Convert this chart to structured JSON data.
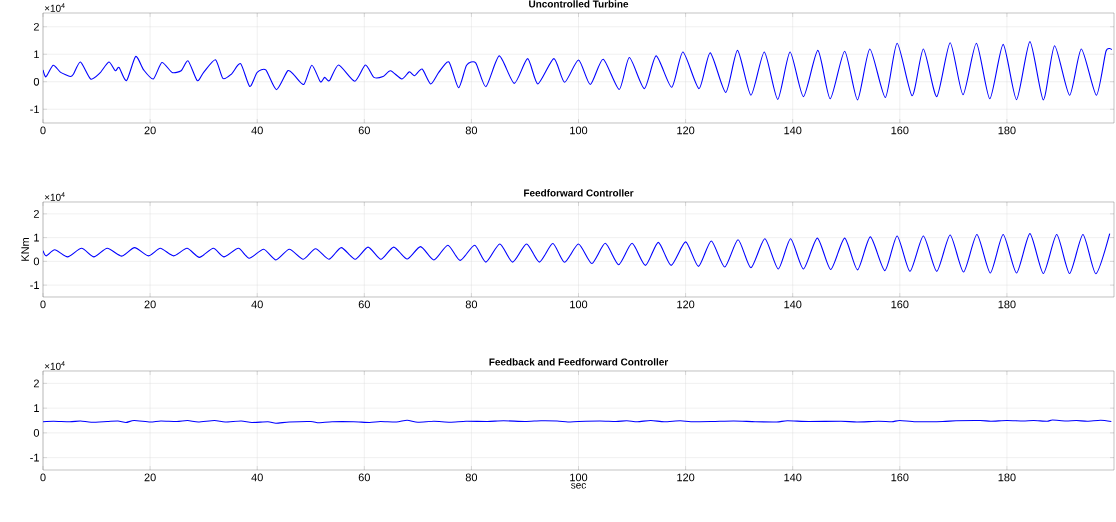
{
  "chart_data": [
    {
      "type": "line",
      "title": "Uncontrolled Turbine",
      "annotations": [
        "×10$^{4}$"
      ],
      "color": "#0000ff",
      "grid": true,
      "x": [
        0,
        0.55,
        1.9,
        3.3,
        5.1,
        5.7,
        7.0,
        8.9,
        10.6,
        12.3,
        13.5,
        14.2,
        15.6,
        17.3,
        18.8,
        20.6,
        22.2,
        24.1,
        25.8,
        27.1,
        28.8,
        30.0,
        32.2,
        33.6,
        35.2,
        36.9,
        38.6,
        40.0,
        41.6,
        43.6,
        45.7,
        46.9,
        48.7,
        50.2,
        51.8,
        52.6,
        53.5,
        55.2,
        58.2,
        60.2,
        61.8,
        63.5,
        64.9,
        67.0,
        68.4,
        69.4,
        70.8,
        72.4,
        73.9,
        75.8,
        77.6,
        79.1,
        80.8,
        82.7,
        85.2,
        88.0,
        90.5,
        92.4,
        95.4,
        97.4,
        100,
        102.2,
        104.6,
        107.6,
        109.5,
        112.3,
        114.5,
        117.4,
        119.5,
        122.5,
        124.6,
        127.5,
        129.7,
        132.2,
        134.7,
        137.2,
        139.5,
        142,
        144.7,
        147,
        149.7,
        152.1,
        154.4,
        157.3,
        159.5,
        162.3,
        164.4,
        166.9,
        169.4,
        171.8,
        174.3,
        176.8,
        179.3,
        181.8,
        184.3,
        186.8,
        188.9,
        191.7,
        193.9,
        196.7,
        198.5,
        199.6
      ],
      "values": [
        0.43,
        0.18,
        0.6,
        0.34,
        0.19,
        0.28,
        0.72,
        0.1,
        0.31,
        0.72,
        0.4,
        0.52,
        0.04,
        0.92,
        0.43,
        0.1,
        0.7,
        0.34,
        0.4,
        0.76,
        0.04,
        0.34,
        0.8,
        0.12,
        0.28,
        0.66,
        -0.17,
        0.34,
        0.43,
        -0.29,
        0.4,
        0.24,
        -0.1,
        0.6,
        0.0,
        0.16,
        0.04,
        0.61,
        0.02,
        0.61,
        0.16,
        0.19,
        0.4,
        0.1,
        0.36,
        0.22,
        0.46,
        -0.08,
        0.34,
        0.72,
        -0.22,
        0.6,
        0.69,
        -0.18,
        0.94,
        -0.06,
        0.84,
        -0.08,
        0.84,
        -0.02,
        0.79,
        -0.1,
        0.82,
        -0.28,
        0.88,
        -0.25,
        0.94,
        -0.2,
        1.08,
        -0.25,
        1.05,
        -0.39,
        1.14,
        -0.49,
        1.08,
        -0.64,
        1.08,
        -0.54,
        1.14,
        -0.62,
        1.11,
        -0.66,
        1.19,
        -0.57,
        1.4,
        -0.51,
        1.19,
        -0.54,
        1.42,
        -0.47,
        1.4,
        -0.62,
        1.36,
        -0.65,
        1.46,
        -0.66,
        1.31,
        -0.49,
        1.19,
        -0.49,
        1.11,
        1.17
      ],
      "xlim": [
        0,
        200
      ],
      "ylim": [
        -1.5,
        2.5
      ],
      "xticks": [
        0,
        20,
        40,
        60,
        80,
        100,
        120,
        140,
        160,
        180
      ],
      "yticks": [
        -1,
        0,
        1,
        2
      ]
    },
    {
      "type": "line",
      "title": "Feedforward Controller",
      "ylabel": "KNm",
      "annotations": [
        "×10$^{4}$"
      ],
      "color": "#0000ff",
      "grid": true,
      "x": [
        0,
        0.6,
        2.2,
        4.6,
        7.2,
        9.5,
        12.0,
        14.7,
        17.1,
        19.7,
        21.9,
        24.4,
        26.9,
        29.2,
        31.8,
        33.8,
        36.5,
        38.5,
        41.2,
        43.5,
        46.0,
        48.6,
        50.9,
        53.4,
        55.7,
        58.3,
        60.7,
        63.1,
        65.5,
        68.0,
        70.5,
        73.0,
        75.6,
        77.9,
        80.6,
        82.7,
        85.3,
        87.7,
        90.3,
        92.7,
        95.2,
        97.4,
        100,
        102.5,
        105,
        107.5,
        110,
        112.5,
        114.9,
        117.3,
        120,
        122.4,
        124.8,
        127.3,
        129.8,
        132.2,
        134.8,
        137.3,
        139.6,
        142,
        144.6,
        147.1,
        149.7,
        152.1,
        154.5,
        157.2,
        159.5,
        161.9,
        164.4,
        166.9,
        169.4,
        171.9,
        174.4,
        176.9,
        179.3,
        181.8,
        184.3,
        186.8,
        189.3,
        191.7,
        194.2,
        196.6,
        199.2
      ],
      "values": [
        0.45,
        0.23,
        0.49,
        0.19,
        0.55,
        0.19,
        0.55,
        0.22,
        0.58,
        0.23,
        0.55,
        0.23,
        0.55,
        0.17,
        0.55,
        0.19,
        0.55,
        0.13,
        0.51,
        0.06,
        0.51,
        0.09,
        0.53,
        0.09,
        0.58,
        0.09,
        0.6,
        0.09,
        0.6,
        0.1,
        0.62,
        0.06,
        0.68,
        0.04,
        0.68,
        -0.03,
        0.73,
        -0.03,
        0.73,
        -0.03,
        0.75,
        -0.04,
        0.73,
        -0.09,
        0.76,
        -0.14,
        0.76,
        -0.17,
        0.8,
        -0.17,
        0.82,
        -0.21,
        0.86,
        -0.24,
        0.91,
        -0.27,
        0.95,
        -0.32,
        0.95,
        -0.32,
        0.98,
        -0.34,
        0.98,
        -0.36,
        1.03,
        -0.39,
        1.07,
        -0.42,
        1.07,
        -0.42,
        1.11,
        -0.45,
        1.13,
        -0.49,
        1.13,
        -0.49,
        1.17,
        -0.51,
        1.13,
        -0.51,
        1.13,
        -0.52,
        1.17
      ],
      "xlim": [
        0,
        200
      ],
      "ylim": [
        -1.5,
        2.5
      ],
      "xticks": [
        0,
        20,
        40,
        60,
        80,
        100,
        120,
        140,
        160,
        180
      ],
      "yticks": [
        -1,
        0,
        1,
        2
      ]
    },
    {
      "type": "line",
      "title": "Feedback and Feedforward Controller",
      "xlabel": "sec",
      "annotations": [
        "×10$^{4}$"
      ],
      "color": "#0000ff",
      "grid": true,
      "x": [
        0,
        2,
        5,
        7,
        9,
        12,
        14,
        15.5,
        17,
        20,
        22,
        25,
        27,
        29,
        32,
        34,
        37,
        39,
        42,
        43.5,
        46,
        50,
        51.5,
        54,
        58,
        61,
        63,
        66,
        68,
        70,
        73,
        76,
        79,
        83,
        86,
        90,
        93,
        96,
        98,
        100,
        104,
        107,
        109,
        111,
        113.5,
        116,
        119,
        121,
        125,
        129,
        133,
        137,
        139,
        143,
        149,
        152,
        156,
        158.5,
        160,
        163,
        168,
        170.5,
        175,
        177,
        180,
        183,
        185,
        187.5,
        188.5,
        191,
        193,
        195,
        197.5,
        199.5
      ],
      "values": [
        0.45,
        0.47,
        0.45,
        0.48,
        0.43,
        0.46,
        0.48,
        0.42,
        0.5,
        0.44,
        0.48,
        0.46,
        0.5,
        0.44,
        0.5,
        0.44,
        0.48,
        0.42,
        0.45,
        0.39,
        0.44,
        0.46,
        0.41,
        0.45,
        0.45,
        0.42,
        0.46,
        0.44,
        0.51,
        0.43,
        0.47,
        0.43,
        0.47,
        0.46,
        0.49,
        0.46,
        0.49,
        0.48,
        0.44,
        0.46,
        0.48,
        0.46,
        0.49,
        0.45,
        0.5,
        0.45,
        0.49,
        0.45,
        0.46,
        0.48,
        0.45,
        0.44,
        0.49,
        0.46,
        0.47,
        0.44,
        0.47,
        0.45,
        0.5,
        0.45,
        0.46,
        0.49,
        0.5,
        0.47,
        0.5,
        0.48,
        0.5,
        0.47,
        0.52,
        0.48,
        0.5,
        0.47,
        0.51,
        0.46
      ],
      "xlim": [
        0,
        200
      ],
      "ylim": [
        -1.5,
        2.5
      ],
      "xticks": [
        0,
        20,
        40,
        60,
        80,
        100,
        120,
        140,
        160,
        180
      ],
      "yticks": [
        -1,
        0,
        1,
        2
      ]
    }
  ]
}
